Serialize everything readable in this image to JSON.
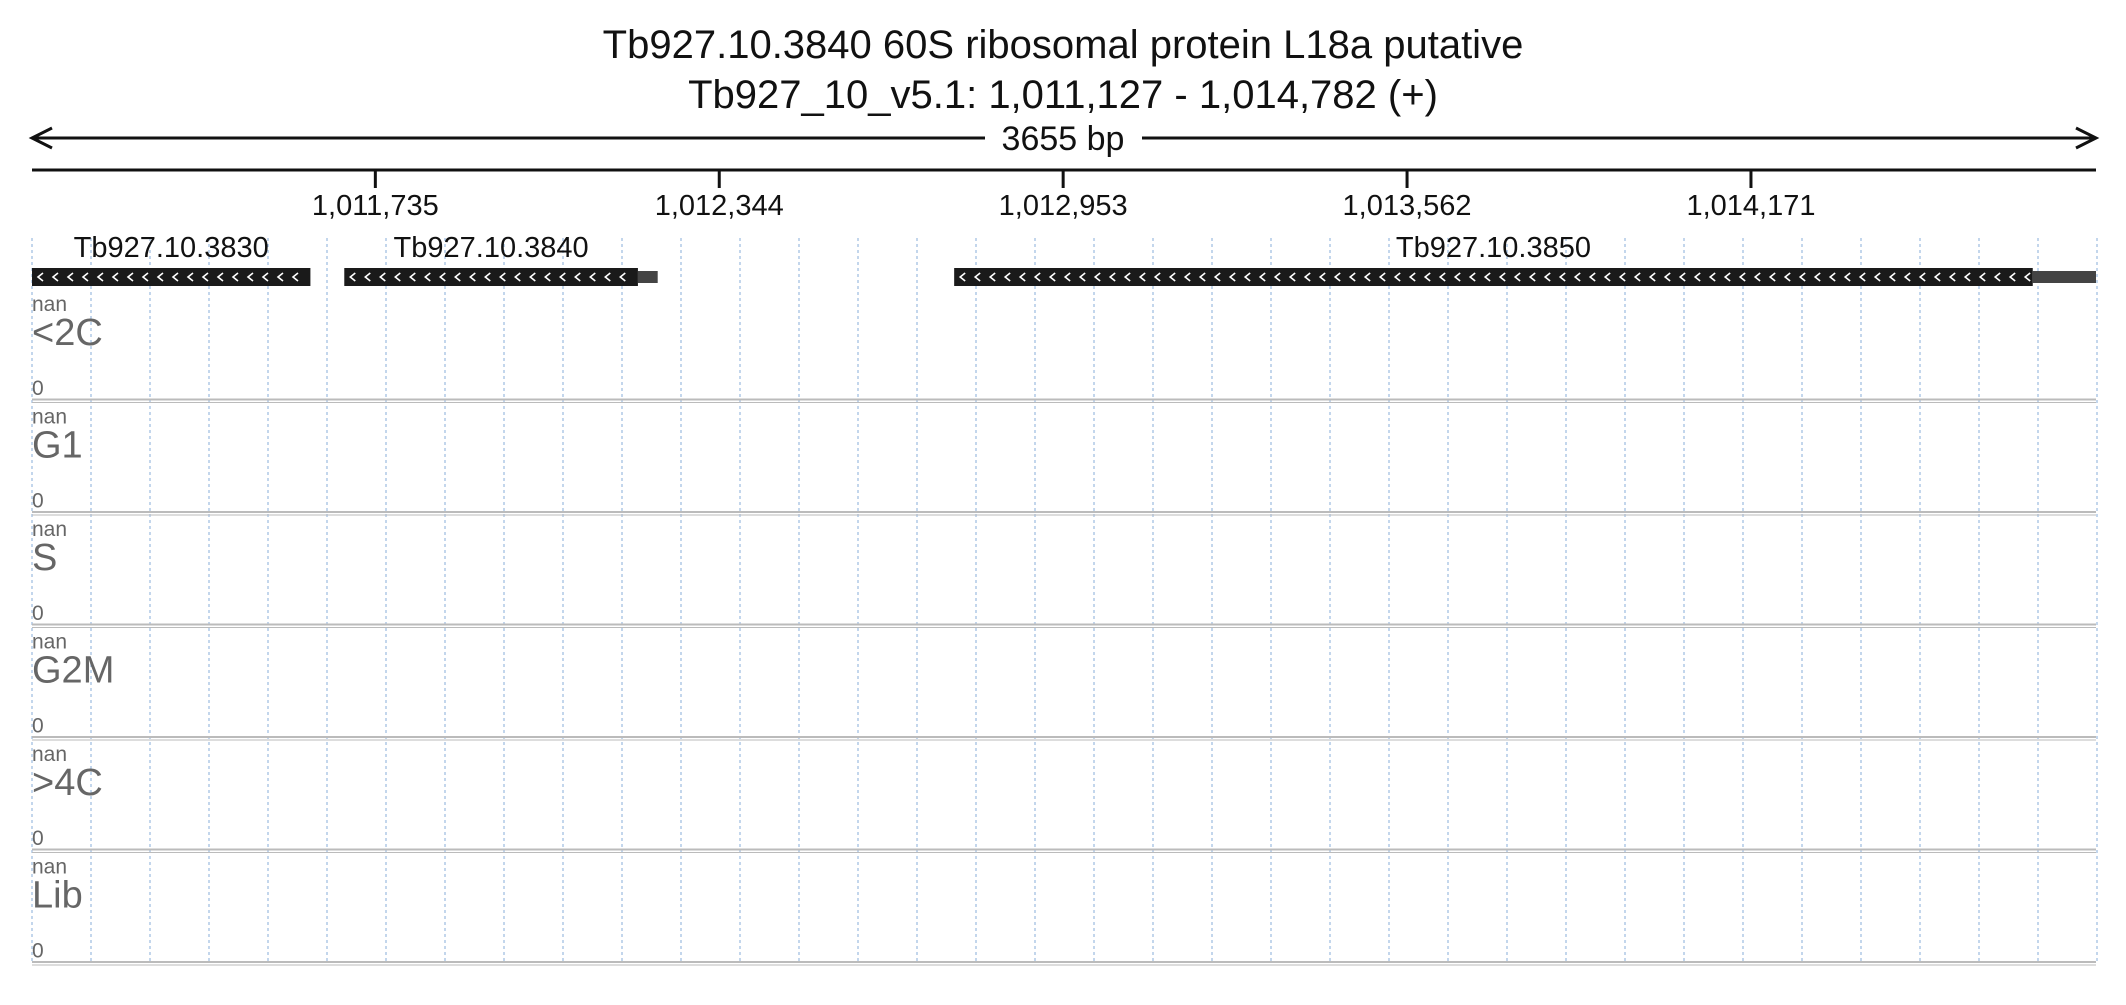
{
  "title": {
    "line1": "Tb927.10.3840  60S ribosomal protein L18a  putative",
    "line2": "Tb927_10_v5.1: 1,011,127 - 1,014,782 (+)"
  },
  "region": {
    "start": 1011127,
    "end": 1014782,
    "span_label": "3655 bp"
  },
  "ruler": {
    "ticks": [
      {
        "pos": 1011735,
        "label": "1,011,735"
      },
      {
        "pos": 1012344,
        "label": "1,012,344"
      },
      {
        "pos": 1012953,
        "label": "1,012,953"
      },
      {
        "pos": 1013562,
        "label": "1,013,562"
      },
      {
        "pos": 1014171,
        "label": "1,014,171"
      }
    ]
  },
  "genes": [
    {
      "name": "Tb927.10.3830",
      "start": 1011127,
      "end": 1011620,
      "utr_end": null,
      "strand": "-"
    },
    {
      "name": "Tb927.10.3840",
      "start": 1011680,
      "end": 1012200,
      "utr_end": 1012235,
      "strand": "-"
    },
    {
      "name": "Tb927.10.3850",
      "start": 1012760,
      "end": 1014670,
      "utr_end": 1014782,
      "strand": "-"
    }
  ],
  "tracks": [
    {
      "label": "<2C",
      "max": "nan",
      "min": "0"
    },
    {
      "label": "G1",
      "max": "nan",
      "min": "0"
    },
    {
      "label": "S",
      "max": "nan",
      "min": "0"
    },
    {
      "label": "G2M",
      "max": "nan",
      "min": "0"
    },
    {
      "label": ">4C",
      "max": "nan",
      "min": "0"
    },
    {
      "label": "Lib",
      "max": "nan",
      "min": "0"
    }
  ],
  "colors": {
    "text": "#111111",
    "gene_fill": "#1a1a1a",
    "utr_fill": "#444444",
    "track_label": "#666666",
    "grid": "#9bbbe0",
    "separator": "#bbbbbb"
  }
}
